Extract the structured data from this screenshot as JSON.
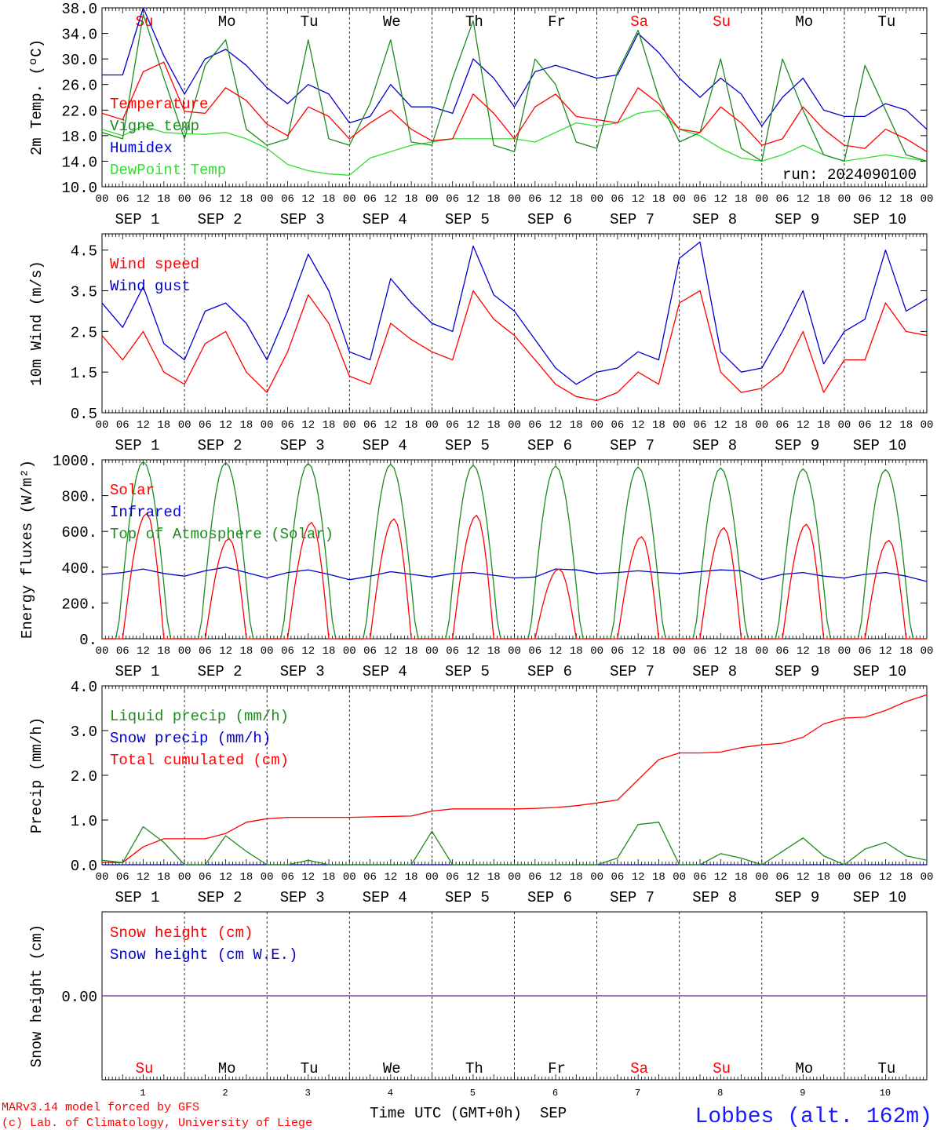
{
  "run_label": "run: 2024090100",
  "footer": {
    "model_line": "MARv3.14 model forced by GFS",
    "credit_line": "(c) Lab. of Climatology, University of Liege",
    "time_axis_label": "Time UTC (GMT+0h)",
    "month_label": "SEP",
    "station_label": "Lobbes (alt. 162m)"
  },
  "days": {
    "names": [
      "Su",
      "Mo",
      "Tu",
      "We",
      "Th",
      "Fr",
      "Sa",
      "Su",
      "Mo",
      "Tu"
    ],
    "weekend": [
      true,
      false,
      false,
      false,
      false,
      false,
      true,
      true,
      false,
      false
    ],
    "dates": [
      "SEP 1",
      "SEP 2",
      "SEP 3",
      "SEP 4",
      "SEP 5",
      "SEP 6",
      "SEP 7",
      "SEP 8",
      "SEP 9",
      "SEP 10"
    ],
    "numbers": [
      "1",
      "2",
      "3",
      "4",
      "5",
      "6",
      "7",
      "8",
      "9",
      "10"
    ],
    "hour_ticks": [
      "00",
      "06",
      "12",
      "18"
    ],
    "end_tick": "00"
  },
  "colors": {
    "red": "#ff0000",
    "green": "#1f8a1f",
    "blue": "#0000cc",
    "lightgreen": "#33dd33",
    "purple": "#7f3f9f",
    "weekend": "#ff0000"
  },
  "chart_data": [
    {
      "type": "line",
      "ylabel": "2m Temp. (ºC)",
      "ylim": [
        10,
        38
      ],
      "yticks": [
        "10.0",
        "14.0",
        "18.0",
        "22.0",
        "26.0",
        "30.0",
        "34.0",
        "38.0"
      ],
      "ytick_values": [
        10,
        14,
        18,
        22,
        26,
        30,
        34,
        38
      ],
      "x_unit": "hours since Sep 1 00 UTC",
      "x": [
        0,
        6,
        12,
        18,
        24,
        30,
        36,
        42,
        48,
        54,
        60,
        66,
        72,
        78,
        84,
        90,
        96,
        102,
        108,
        114,
        120,
        126,
        132,
        138,
        144,
        150,
        156,
        162,
        168,
        174,
        180,
        186,
        192,
        198,
        204,
        210,
        216,
        222,
        228,
        234,
        240
      ],
      "series": [
        {
          "name": "Temperature",
          "color": "red",
          "values": [
            21.5,
            20.5,
            28,
            29.5,
            21.8,
            21.5,
            25.5,
            23.5,
            19.8,
            18,
            22.5,
            21,
            17.5,
            20,
            22,
            19,
            17.2,
            17.5,
            24.5,
            21.5,
            17.5,
            22.5,
            24.5,
            21,
            20.5,
            20,
            25.5,
            23,
            19,
            18.5,
            22.5,
            20,
            16.5,
            17.5,
            22.5,
            19,
            16.5,
            16,
            19,
            17.5,
            15.5
          ]
        },
        {
          "name": "Vigne temp",
          "color": "green",
          "values": [
            18.5,
            17.5,
            37,
            27,
            17.5,
            29,
            33,
            19,
            16.5,
            17.5,
            33,
            17.5,
            16.5,
            23,
            33,
            17,
            16.5,
            27,
            36,
            16.5,
            15.5,
            30,
            26,
            17,
            16,
            28,
            34.5,
            24,
            17,
            18.5,
            30,
            16,
            14,
            30,
            22,
            15,
            14,
            29,
            22,
            15,
            14
          ]
        },
        {
          "name": "Humidex",
          "color": "blue",
          "values": [
            27.5,
            27.5,
            38,
            30.5,
            24.5,
            30,
            31.5,
            29,
            25.5,
            23,
            26,
            24.5,
            20,
            21,
            26,
            22.5,
            22.5,
            21.5,
            30,
            27,
            22.5,
            28,
            29,
            28,
            27,
            27.5,
            34,
            31,
            27,
            24,
            27,
            24.5,
            19.5,
            24,
            27,
            22,
            21,
            21,
            23,
            22,
            19
          ]
        },
        {
          "name": "DewPoint Temp",
          "color": "lightgreen",
          "values": [
            19,
            18,
            19.5,
            18.5,
            18.3,
            18.2,
            18.5,
            17.5,
            16,
            13.5,
            12.5,
            12,
            11.8,
            14.5,
            15.5,
            16.5,
            17,
            17.5,
            17.5,
            17.5,
            17.5,
            17,
            18.5,
            20,
            19.5,
            20,
            21.5,
            22,
            19,
            18,
            16,
            14.5,
            14,
            15,
            16.5,
            15,
            14,
            14.5,
            15,
            14.5,
            14
          ]
        }
      ]
    },
    {
      "type": "line",
      "ylabel": "10m Wind (m/s)",
      "ylim": [
        0.5,
        4.9
      ],
      "yticks": [
        "0.5",
        "1.5",
        "2.5",
        "3.5",
        "4.5"
      ],
      "ytick_values": [
        0.5,
        1.5,
        2.5,
        3.5,
        4.5
      ],
      "x_unit": "hours since Sep 1 00 UTC",
      "x": [
        0,
        6,
        12,
        18,
        24,
        30,
        36,
        42,
        48,
        54,
        60,
        66,
        72,
        78,
        84,
        90,
        96,
        102,
        108,
        114,
        120,
        126,
        132,
        138,
        144,
        150,
        156,
        162,
        168,
        174,
        180,
        186,
        192,
        198,
        204,
        210,
        216,
        222,
        228,
        234,
        240
      ],
      "series": [
        {
          "name": "Wind speed",
          "color": "red",
          "values": [
            2.4,
            1.8,
            2.5,
            1.5,
            1.2,
            2.2,
            2.5,
            1.5,
            1.0,
            2.0,
            3.4,
            2.7,
            1.4,
            1.2,
            2.7,
            2.3,
            2.0,
            1.8,
            3.5,
            2.8,
            2.4,
            1.8,
            1.2,
            0.9,
            0.8,
            1.0,
            1.5,
            1.2,
            3.2,
            3.5,
            1.5,
            1.0,
            1.1,
            1.5,
            2.5,
            1.0,
            1.8,
            1.8,
            3.2,
            2.5,
            2.4
          ]
        },
        {
          "name": "Wind gust",
          "color": "blue",
          "values": [
            3.2,
            2.6,
            3.6,
            2.2,
            1.8,
            3.0,
            3.2,
            2.7,
            1.8,
            3.0,
            4.4,
            3.5,
            2.0,
            1.8,
            3.8,
            3.2,
            2.7,
            2.5,
            4.6,
            3.4,
            3.0,
            2.3,
            1.6,
            1.2,
            1.5,
            1.6,
            2.0,
            1.8,
            4.3,
            4.7,
            2.0,
            1.5,
            1.6,
            2.5,
            3.5,
            1.7,
            2.5,
            2.8,
            4.5,
            3.0,
            3.3
          ]
        }
      ]
    },
    {
      "type": "line",
      "ylabel": "Energy fluxes (W/m²)",
      "ylim": [
        0,
        1000
      ],
      "yticks": [
        "0.",
        "200.",
        "400.",
        "600.",
        "800.",
        "1000."
      ],
      "ytick_values": [
        0,
        200,
        400,
        600,
        800,
        1000
      ],
      "x_unit": "hours since Sep 1 00 UTC",
      "series": [
        {
          "name": "Solar",
          "color": "red",
          "day_peak_hour": 13,
          "day_peaks": [
            700,
            560,
            650,
            670,
            690,
            390,
            570,
            620,
            640,
            550
          ]
        },
        {
          "name": "Infrared",
          "color": "blue",
          "values": [
            360,
            370,
            390,
            365,
            350,
            380,
            400,
            370,
            340,
            370,
            385,
            360,
            330,
            350,
            375,
            360,
            345,
            365,
            370,
            355,
            340,
            345,
            390,
            385,
            365,
            370,
            380,
            370,
            365,
            375,
            385,
            380,
            330,
            360,
            370,
            350,
            340,
            360,
            370,
            350,
            320
          ]
        },
        {
          "name": "Top of Atmosphere (Solar)",
          "color": "green",
          "day_peak_hour": 12,
          "day_peaks": [
            990,
            985,
            980,
            975,
            970,
            965,
            960,
            955,
            950,
            945
          ]
        }
      ]
    },
    {
      "type": "line",
      "ylabel": "Precip (mm/h)",
      "ylim": [
        0,
        4
      ],
      "yticks": [
        "0.0",
        "1.0",
        "2.0",
        "3.0",
        "4.0"
      ],
      "ytick_values": [
        0,
        1,
        2,
        3,
        4
      ],
      "x_unit": "hours since Sep 1 00 UTC",
      "x": [
        0,
        6,
        12,
        18,
        24,
        30,
        36,
        42,
        48,
        54,
        60,
        66,
        72,
        78,
        84,
        90,
        96,
        102,
        108,
        114,
        120,
        126,
        132,
        138,
        144,
        150,
        156,
        162,
        168,
        174,
        180,
        186,
        192,
        198,
        204,
        210,
        216,
        222,
        228,
        234,
        240
      ],
      "series": [
        {
          "name": "Liquid precip (mm/h)",
          "color": "green",
          "values": [
            0.1,
            0.05,
            0.85,
            0.5,
            0,
            0,
            0.65,
            0.3,
            0,
            0,
            0.1,
            0,
            0,
            0,
            0,
            0,
            0.75,
            0,
            0,
            0,
            0,
            0,
            0,
            0,
            0,
            0.15,
            0.9,
            0.95,
            0,
            0,
            0.25,
            0.15,
            0,
            0.3,
            0.6,
            0.2,
            0,
            0.35,
            0.5,
            0.2,
            0.1
          ]
        },
        {
          "name": "Snow precip (mm/h)",
          "color": "blue",
          "values": [
            0,
            0,
            0,
            0,
            0,
            0,
            0,
            0,
            0,
            0,
            0,
            0,
            0,
            0,
            0,
            0,
            0,
            0,
            0,
            0,
            0,
            0,
            0,
            0,
            0,
            0,
            0,
            0,
            0,
            0,
            0,
            0,
            0,
            0,
            0,
            0,
            0,
            0,
            0,
            0,
            0
          ]
        },
        {
          "name": "Total cumulated (cm)",
          "color": "red",
          "values": [
            0.05,
            0.05,
            0.4,
            0.58,
            0.58,
            0.58,
            0.7,
            0.95,
            1.03,
            1.06,
            1.06,
            1.06,
            1.06,
            1.07,
            1.08,
            1.09,
            1.2,
            1.25,
            1.25,
            1.25,
            1.25,
            1.26,
            1.28,
            1.32,
            1.38,
            1.45,
            1.9,
            2.35,
            2.5,
            2.5,
            2.52,
            2.62,
            2.68,
            2.72,
            2.85,
            3.15,
            3.28,
            3.3,
            3.45,
            3.65,
            3.8
          ]
        }
      ]
    },
    {
      "type": "line",
      "ylabel": "Snow height (cm)",
      "ylim": [
        -1,
        1
      ],
      "yticks": [
        "0.00"
      ],
      "ytick_values": [
        0
      ],
      "x_unit": "hours since Sep 1 00 UTC",
      "series": [
        {
          "name": "Snow height (cm)",
          "color": "red",
          "values": [
            0,
            0
          ]
        },
        {
          "name": "Snow height (cm W.E.)",
          "color": "blue",
          "values": [
            0,
            0
          ]
        }
      ]
    }
  ]
}
